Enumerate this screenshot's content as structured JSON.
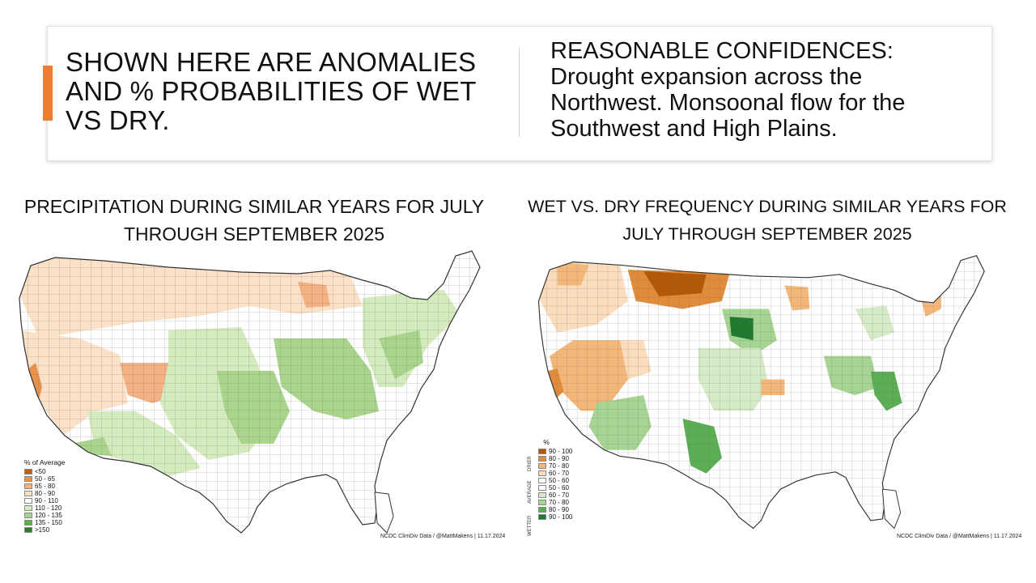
{
  "banner": {
    "headline": "SHOWN HERE ARE ANOMALIES AND % PROBABILITIES OF WET VS DRY.",
    "confidence_title": "REASONABLE CONFIDENCES:",
    "confidence_text": "Drought expansion across the Northwest. Monsoonal flow for the Southwest and High Plains.",
    "accent_color": "#ed7d31"
  },
  "left_map": {
    "title": "PRECIPITATION DURING SIMILAR YEARS FOR JULY THROUGH SEPTEMBER 2025",
    "legend_title": "% of Average",
    "legend": [
      {
        "label": "<50",
        "color": "#c55a11"
      },
      {
        "label": "50 - 65",
        "color": "#e8924a"
      },
      {
        "label": "65 - 80",
        "color": "#f4b183"
      },
      {
        "label": "80 - 90",
        "color": "#fbe1c8"
      },
      {
        "label": "90 - 110",
        "color": "#ffffff"
      },
      {
        "label": "110 - 120",
        "color": "#d4ebbe"
      },
      {
        "label": "120 - 135",
        "color": "#a8d58b"
      },
      {
        "label": "135 - 150",
        "color": "#5fae4e"
      },
      {
        "label": ">150",
        "color": "#2a7d2a"
      }
    ],
    "credit": "NCDC ClimDiv Data / @MattMakens | 11.17.2024"
  },
  "right_map": {
    "title": "WET VS. DRY FREQUENCY DURING SIMILAR YEARS FOR JULY THROUGH SEPTEMBER 2025",
    "legend_title": "%",
    "legend": [
      {
        "label": "90 - 100",
        "color": "#b35806"
      },
      {
        "label": "80 - 90",
        "color": "#e08c3a"
      },
      {
        "label": "70 - 80",
        "color": "#f4b77a"
      },
      {
        "label": "60 - 70",
        "color": "#fbdcbc"
      },
      {
        "label": "50 - 60",
        "color": "#ffffff"
      },
      {
        "label": "50 - 60",
        "color": "#ffffff"
      },
      {
        "label": "60 - 70",
        "color": "#d5ebc7"
      },
      {
        "label": "70 - 80",
        "color": "#a6d492"
      },
      {
        "label": "80 - 90",
        "color": "#5cae55"
      },
      {
        "label": "90 - 100",
        "color": "#1f7a2e"
      }
    ],
    "drier_label": "DRIER",
    "average_label": "AVERAGE",
    "wetter_label": "WETTER",
    "credit": "NCDC ClimDiv Data / @MattMakens | 11.17.2024"
  }
}
